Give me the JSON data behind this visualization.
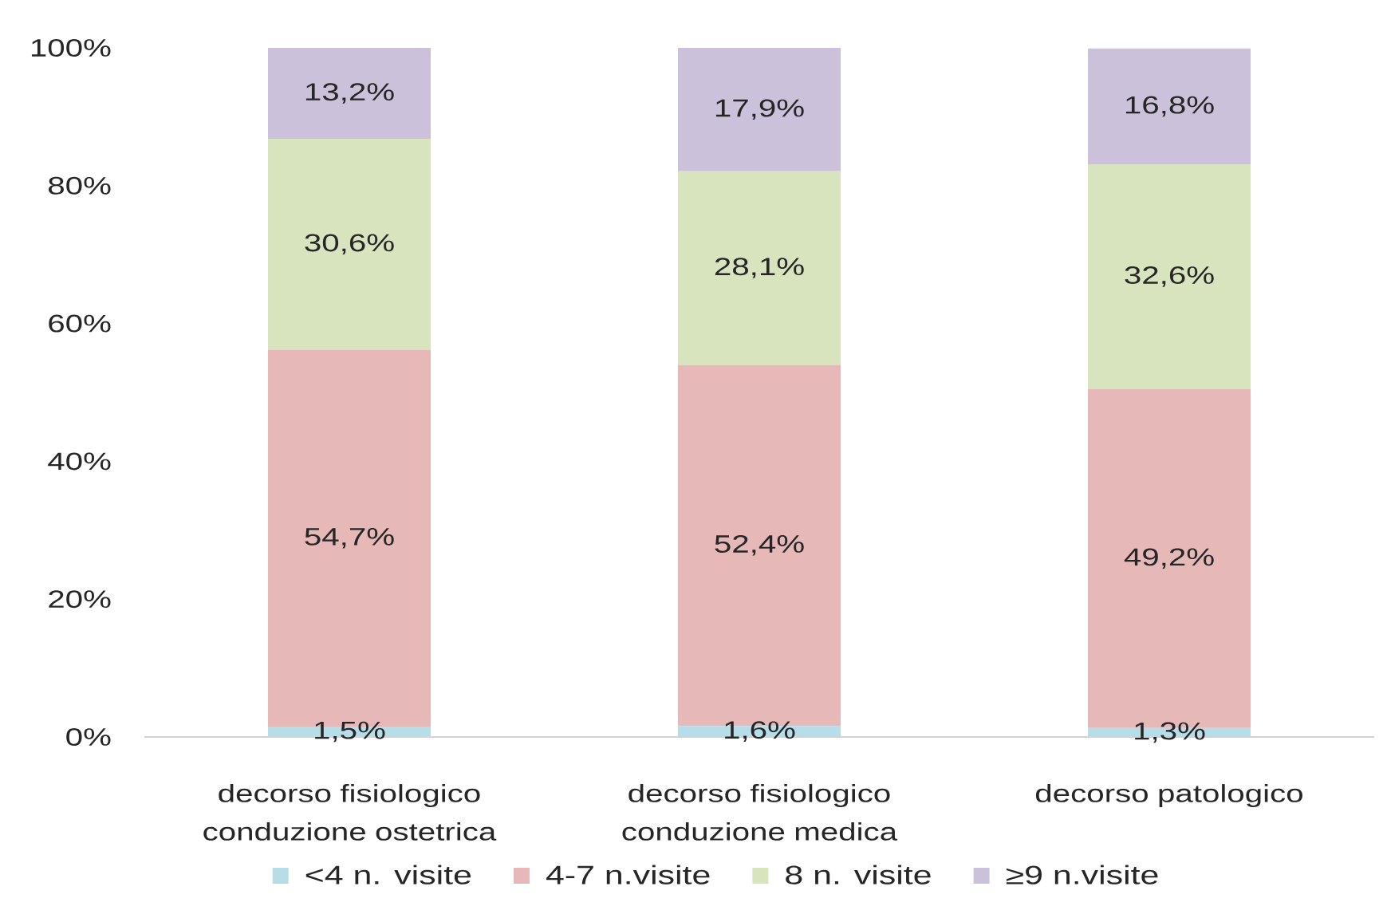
{
  "chart_data": {
    "type": "bar",
    "stacked": true,
    "categories": [
      "decorso fisiologico conduzione ostetrica",
      "decorso fisiologico conduzione medica",
      "decorso patologico"
    ],
    "series": [
      {
        "name": "<4 n. visite",
        "color": "#b7dde8",
        "values": [
          1.5,
          1.6,
          1.3
        ],
        "value_labels": [
          "1,5%",
          "1,6%",
          "1,3%"
        ]
      },
      {
        "name": "4-7 n.visite",
        "color": "#e6b9b8",
        "values": [
          54.7,
          52.4,
          49.2
        ],
        "value_labels": [
          "54,7%",
          "52,4%",
          "49,2%"
        ]
      },
      {
        "name": "8 n. visite",
        "color": "#d7e4bd",
        "values": [
          30.6,
          28.1,
          32.6
        ],
        "value_labels": [
          "30,6%",
          "28,1%",
          "32,6%"
        ]
      },
      {
        "name": "≥9 n.visite",
        "color": "#ccc1da",
        "values": [
          13.2,
          17.9,
          16.8
        ],
        "value_labels": [
          "13,2%",
          "17,9%",
          "16,8%"
        ]
      }
    ],
    "ylim": [
      0,
      100
    ],
    "yticks": [
      {
        "value": 0,
        "label": "0%"
      },
      {
        "value": 20,
        "label": "20%"
      },
      {
        "value": 40,
        "label": "40%"
      },
      {
        "value": 60,
        "label": "60%"
      },
      {
        "value": 80,
        "label": "80%"
      },
      {
        "value": 100,
        "label": "100%"
      }
    ],
    "legend": "bottom"
  }
}
